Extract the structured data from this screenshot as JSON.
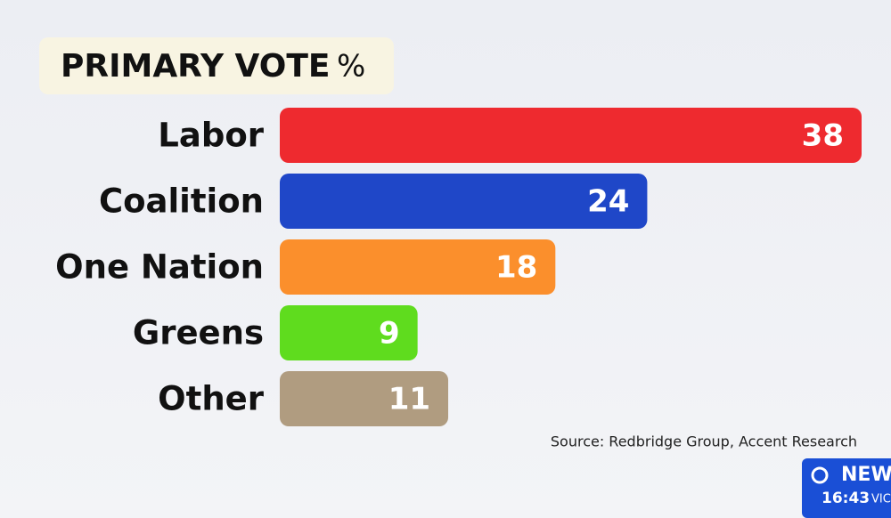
{
  "chart_data": {
    "type": "bar",
    "orientation": "horizontal",
    "title": "PRIMARY VOTE",
    "unit": "%",
    "categories": [
      "Labor",
      "Coalition",
      "One Nation",
      "Greens",
      "Other"
    ],
    "values": [
      38,
      24,
      18,
      9,
      11
    ],
    "colors": [
      "#ee2a2f",
      "#1f47c8",
      "#fb8f2c",
      "#5fdc1e",
      "#b09c80"
    ],
    "source": "Source: Redbridge Group, Accent Research"
  },
  "badge": {
    "label": "NEWS",
    "time": "16:43",
    "region": "VIC"
  }
}
